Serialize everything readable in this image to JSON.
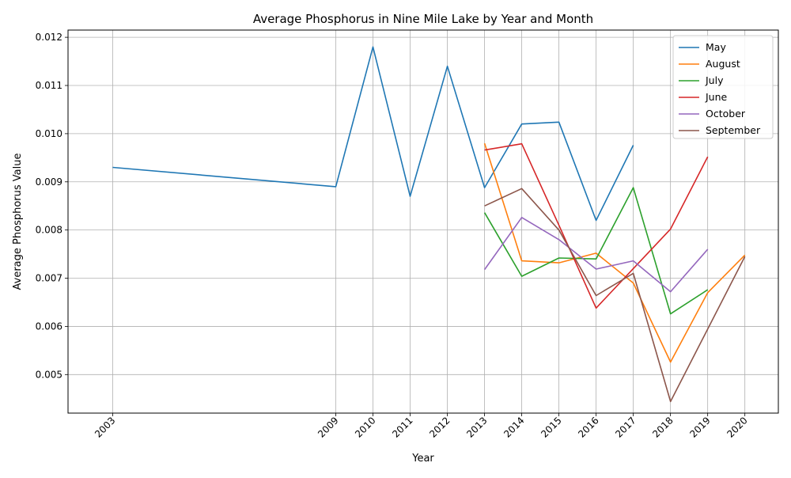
{
  "chart_data": {
    "type": "line",
    "title": "Average Phosphorus in Nine Mile Lake by Year and Month",
    "xlabel": "Year",
    "ylabel": "Average Phosphorus Value",
    "xlim": [
      2001.8,
      2020.9
    ],
    "ylim": [
      0.0042,
      0.01215
    ],
    "x_ticks": [
      2003,
      2009,
      2010,
      2011,
      2012,
      2013,
      2014,
      2015,
      2016,
      2017,
      2018,
      2019,
      2020
    ],
    "y_ticks": [
      0.005,
      0.006,
      0.007,
      0.008,
      0.009,
      0.01,
      0.011,
      0.012
    ],
    "y_tick_labels": [
      "0.005",
      "0.006",
      "0.007",
      "0.008",
      "0.009",
      "0.010",
      "0.011",
      "0.012"
    ],
    "grid": true,
    "legend_position": "top-right",
    "series": [
      {
        "name": "May",
        "color": "#1f77b4",
        "points": [
          [
            2003,
            0.0093
          ],
          [
            2009,
            0.0089
          ],
          [
            2010,
            0.0118
          ],
          [
            2011,
            0.0087
          ],
          [
            2012,
            0.0114
          ],
          [
            2013,
            0.00888
          ],
          [
            2014,
            0.0102
          ],
          [
            2015,
            0.01024
          ],
          [
            2016,
            0.0082
          ],
          [
            2017,
            0.00976
          ]
        ]
      },
      {
        "name": "August",
        "color": "#ff7f0e",
        "points": [
          [
            2013,
            0.0098
          ],
          [
            2014,
            0.00736
          ],
          [
            2015,
            0.00732
          ],
          [
            2016,
            0.00752
          ],
          [
            2017,
            0.0069
          ],
          [
            2018,
            0.00526
          ],
          [
            2019,
            0.0067
          ],
          [
            2020,
            0.00748
          ]
        ]
      },
      {
        "name": "July",
        "color": "#2ca02c",
        "points": [
          [
            2013,
            0.00836
          ],
          [
            2014,
            0.00704
          ],
          [
            2015,
            0.00742
          ],
          [
            2016,
            0.0074
          ],
          [
            2017,
            0.00888
          ],
          [
            2018,
            0.00626
          ],
          [
            2019,
            0.00676
          ]
        ]
      },
      {
        "name": "June",
        "color": "#d62728",
        "points": [
          [
            2013,
            0.00966
          ],
          [
            2014,
            0.00979
          ],
          [
            2015,
            0.0081
          ],
          [
            2016,
            0.00638
          ],
          [
            2017,
            0.0072
          ],
          [
            2018,
            0.00802
          ],
          [
            2019,
            0.00952
          ]
        ]
      },
      {
        "name": "October",
        "color": "#9467bd",
        "points": [
          [
            2013,
            0.00718
          ],
          [
            2014,
            0.00826
          ],
          [
            2015,
            0.0078
          ],
          [
            2016,
            0.00719
          ],
          [
            2017,
            0.00736
          ],
          [
            2018,
            0.00672
          ],
          [
            2019,
            0.0076
          ]
        ]
      },
      {
        "name": "September",
        "color": "#8c564b",
        "points": [
          [
            2013,
            0.0085
          ],
          [
            2014,
            0.00886
          ],
          [
            2015,
            0.008
          ],
          [
            2016,
            0.00664
          ],
          [
            2017,
            0.0071
          ],
          [
            2018,
            0.00444
          ],
          [
            2020,
            0.00745
          ]
        ]
      }
    ]
  }
}
